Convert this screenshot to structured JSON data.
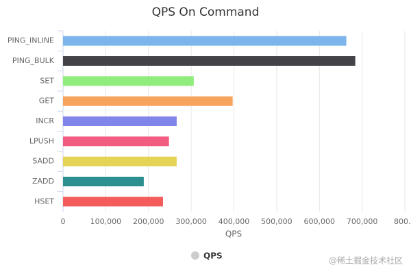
{
  "chart_data": {
    "type": "bar",
    "orientation": "horizontal",
    "title": "QPS On Command",
    "categories": [
      "PING_INLINE",
      "PING_BULK",
      "SET",
      "GET",
      "INCR",
      "LPUSH",
      "SADD",
      "ZADD",
      "HSET"
    ],
    "series": [
      {
        "name": "QPS",
        "colors": [
          "#7cb5ec",
          "#434348",
          "#90ed7d",
          "#f7a35c",
          "#8085e9",
          "#f15c80",
          "#e4d354",
          "#2b908f",
          "#f45b5b"
        ],
        "values": [
          663000,
          684000,
          306000,
          397000,
          266000,
          248000,
          266000,
          189000,
          234000
        ]
      }
    ],
    "x_label": "QPS",
    "xlim": [
      0,
      800000
    ],
    "xticks": [
      0,
      {
        "value": 100000,
        "label": "100,000"
      },
      {
        "value": 200000,
        "label": "200,000"
      },
      {
        "value": 300000,
        "label": "300,000"
      },
      {
        "value": 400000,
        "label": "400,000"
      },
      {
        "value": 500000,
        "label": "500,000"
      },
      {
        "value": 600000,
        "label": "600,000"
      },
      {
        "value": 700000,
        "label": "700,000"
      },
      {
        "value": 800000,
        "label": "800…"
      }
    ],
    "grid": true,
    "legend_position": "bottom",
    "legend_marker_color": "#cccccc"
  },
  "watermark": "@稀土掘金技术社区"
}
